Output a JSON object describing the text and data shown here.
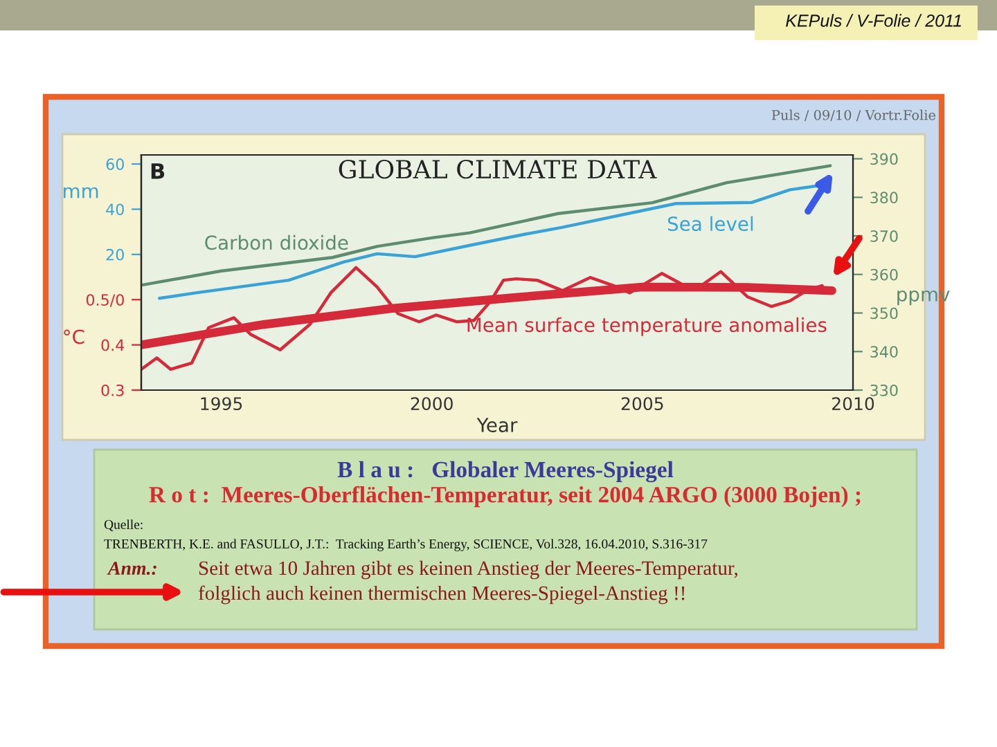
{
  "chart_data": {
    "type": "line",
    "title": "GLOBAL CLIMATE DATA",
    "xlabel": "Year",
    "ylabel": "°C",
    "y2label": "ppmv",
    "y3label": "mm",
    "xlim": [
      1993.1,
      2010
    ],
    "xticks": [
      1995,
      2000,
      2005,
      2010
    ],
    "ylim": [
      0.3,
      0.82
    ],
    "yticks": [
      0.3,
      0.4,
      {
        "value": 0.5,
        "label": "0.5/0"
      }
    ],
    "y2lim": [
      330,
      391
    ],
    "y2ticks": [
      330,
      340,
      350,
      360,
      370,
      380,
      390
    ],
    "y3lim": [
      -40,
      64
    ],
    "y3ticks": [
      20,
      40,
      60
    ],
    "grid": false,
    "legend": false,
    "series": [
      {
        "name": "Carbon dioxide",
        "color": "#5e8c70",
        "axis": "y2",
        "x": [
          1993.14,
          1995,
          1997.64,
          1998.71,
          2000,
          2000.9,
          2003,
          2005.23,
          2007,
          2009.46
        ],
        "values": [
          357.3,
          360.9,
          364.4,
          367.3,
          369.5,
          370.8,
          375.8,
          378.6,
          383.8,
          388.2
        ]
      },
      {
        "name": "Sea level",
        "color": "#3aa2d4",
        "axis": "y3",
        "x": [
          1993.53,
          1994.4,
          1996.6,
          1997.9,
          1998.7,
          1999.6,
          2000.9,
          2002.2,
          2003.1,
          2005.8,
          2007.6,
          2008.5,
          2009.4
        ],
        "values": [
          0.6,
          3,
          8.6,
          16.6,
          20.3,
          19,
          24,
          28.9,
          32,
          42.5,
          43,
          48.6,
          51
        ]
      },
      {
        "name": "Mean surface temperature anomalies",
        "color": "#d42a3a",
        "axis": "y",
        "x": [
          1993.1,
          1993.47,
          1993.8,
          1994.3,
          1994.7,
          1995.3,
          1995.7,
          1996.4,
          1997.1,
          1997.6,
          1998.2,
          1998.7,
          1999.2,
          1999.7,
          2000.1,
          2000.6,
          2001.0,
          2001.4,
          2001.7,
          2002.0,
          2002.5,
          2003.1,
          2003.76,
          2004.4,
          2004.7,
          2005.46,
          2006.0,
          2006.4,
          2006.86,
          2007.5,
          2008.06,
          2008.5,
          2008.9,
          2009.27
        ],
        "values": [
          0.346,
          0.371,
          0.346,
          0.36,
          0.438,
          0.46,
          0.423,
          0.389,
          0.445,
          0.515,
          0.571,
          0.528,
          0.469,
          0.451,
          0.466,
          0.451,
          0.454,
          0.497,
          0.543,
          0.546,
          0.543,
          0.52,
          0.549,
          0.528,
          0.515,
          0.558,
          0.531,
          0.531,
          0.562,
          0.506,
          0.485,
          0.497,
          0.52,
          0.531
        ]
      },
      {
        "type": "line",
        "color": "#d42a3a",
        "axis": "y",
        "x": [
          1993.1,
          1996,
          1999,
          2002,
          2005,
          2007.5,
          2009.5
        ],
        "values": [
          0.4,
          0.445,
          0.48,
          0.505,
          0.528,
          0.527,
          0.52
        ]
      }
    ],
    "annotations": [
      "B",
      "Puls / 09/10 / Vortr.Folie",
      "KEPuls / V-Folie / 2011",
      "B l a u :   Globaler Meeres-Spiegel",
      "R o t :  Meeres-Oberflächen-Temperatur, seit 2004 ARGO (3000 Bojen) ;",
      "Quelle:",
      "TRENBERTH, K.E. and FASULLO, J.T.:  Tracking Earth’s Energy, SCIENCE, Vol.328, 16.04.2010, S.316-317",
      "Anm.:",
      "Seit etwa 10 Jahren gibt es keinen Anstieg der Meeres-Temperatur,",
      "folglich auch keinen thermischen Meeres-Spiegel-Anstieg !!"
    ]
  }
}
